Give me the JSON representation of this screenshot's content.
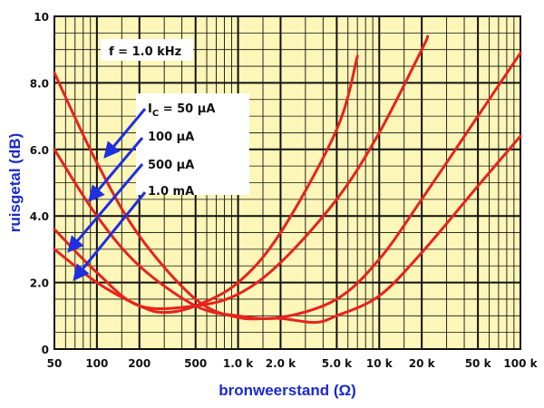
{
  "chart_data": {
    "type": "line",
    "title": "",
    "xlabel": "bronweerstand (Ω)",
    "ylabel": "ruisgetal (dB)",
    "x_scale": "log",
    "xlim": [
      50,
      100000
    ],
    "ylim": [
      0,
      10
    ],
    "grid": true,
    "x_ticks": [
      {
        "value": 50,
        "label": "50"
      },
      {
        "value": 100,
        "label": "100"
      },
      {
        "value": 200,
        "label": "200"
      },
      {
        "value": 500,
        "label": "500"
      },
      {
        "value": 1000,
        "label": "1.0 k"
      },
      {
        "value": 2000,
        "label": "2.0 k"
      },
      {
        "value": 5000,
        "label": "5.0 k"
      },
      {
        "value": 10000,
        "label": "10 k"
      },
      {
        "value": 20000,
        "label": "20 k"
      },
      {
        "value": 50000,
        "label": "50 k"
      },
      {
        "value": 100000,
        "label": "100 k"
      }
    ],
    "y_ticks": [
      {
        "value": 0,
        "label": "0"
      },
      {
        "value": 2,
        "label": "2.0"
      },
      {
        "value": 4,
        "label": "4.0"
      },
      {
        "value": 6,
        "label": "6.0"
      },
      {
        "value": 8,
        "label": "8.0"
      },
      {
        "value": 10,
        "label": "10"
      }
    ],
    "annotation_condition": "f = 1.0 kHz",
    "colors": {
      "background": "#fcf6b8",
      "grid": "#111111",
      "curve": "#e8221c",
      "arrow": "#1f2fe0",
      "axis_title": "#1a2ad0"
    },
    "series": [
      {
        "label": "I_C = 50 μA",
        "label_parts": [
          "I",
          "C",
          " = 50 μA"
        ],
        "points": [
          [
            50,
            8.3
          ],
          [
            100,
            5.6
          ],
          [
            200,
            3.4
          ],
          [
            500,
            1.5
          ],
          [
            1000,
            0.95
          ],
          [
            2000,
            0.92
          ],
          [
            3500,
            0.8
          ],
          [
            5000,
            1.0
          ],
          [
            10000,
            1.6
          ],
          [
            20000,
            2.9
          ],
          [
            50000,
            4.9
          ],
          [
            100000,
            6.4
          ]
        ]
      },
      {
        "label": "100 μA",
        "points": [
          [
            50,
            6.0
          ],
          [
            100,
            4.0
          ],
          [
            200,
            2.5
          ],
          [
            500,
            1.3
          ],
          [
            1000,
            1.0
          ],
          [
            2000,
            0.95
          ],
          [
            5000,
            1.5
          ],
          [
            10000,
            2.7
          ],
          [
            20000,
            4.5
          ],
          [
            50000,
            7.0
          ],
          [
            100000,
            8.9
          ]
        ]
      },
      {
        "label": "500 μA",
        "points": [
          [
            50,
            3.6
          ],
          [
            100,
            2.3
          ],
          [
            200,
            1.3
          ],
          [
            500,
            1.3
          ],
          [
            1000,
            1.65
          ],
          [
            2000,
            2.6
          ],
          [
            5000,
            4.5
          ],
          [
            10000,
            6.5
          ],
          [
            20000,
            9.0
          ],
          [
            22000,
            9.4
          ]
        ]
      },
      {
        "label": "1.0 mA",
        "points": [
          [
            50,
            3.0
          ],
          [
            100,
            2.0
          ],
          [
            200,
            1.3
          ],
          [
            300,
            1.1
          ],
          [
            500,
            1.3
          ],
          [
            1000,
            2.0
          ],
          [
            2000,
            3.5
          ],
          [
            5000,
            6.6
          ],
          [
            7000,
            8.8
          ]
        ]
      }
    ]
  }
}
